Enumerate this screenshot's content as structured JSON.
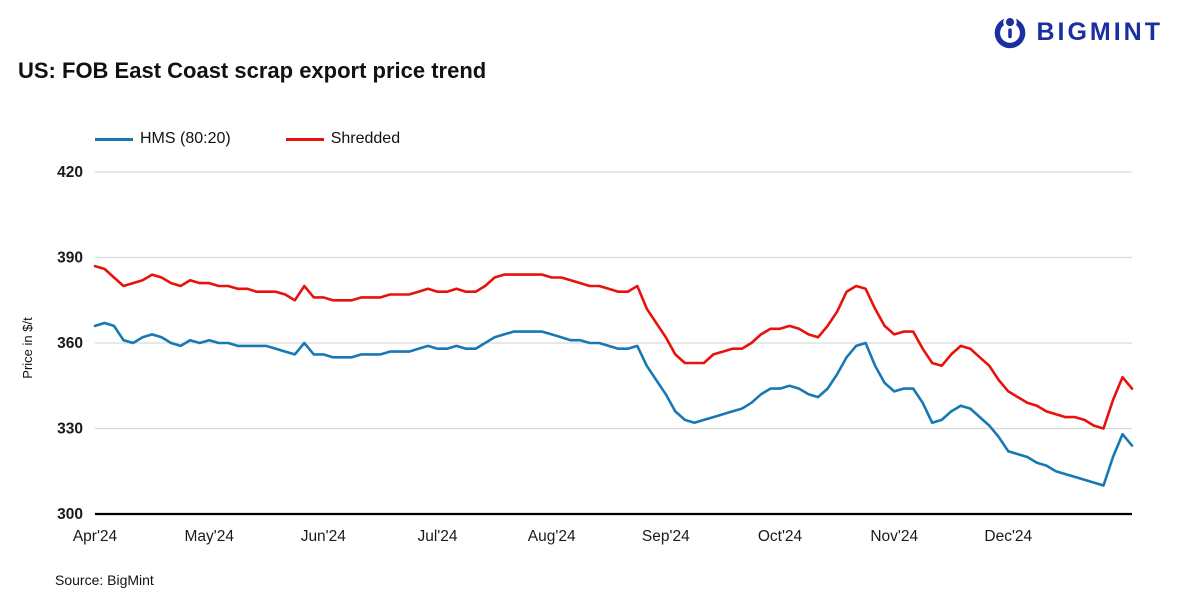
{
  "logo": {
    "text": "BIGMINT",
    "color": "#1b2fa0"
  },
  "title": "US: FOB East Coast scrap export price trend",
  "ylabel": "Price in $/t",
  "source": "Source: BigMint",
  "legend": [
    {
      "label": "HMS (80:20)"
    },
    {
      "label": "Shredded"
    }
  ],
  "chart_data": {
    "type": "line",
    "title": "US: FOB East Coast scrap export price trend",
    "xlabel": "",
    "ylabel": "Price in $/t",
    "ylim": [
      300,
      420
    ],
    "yticks": [
      300,
      330,
      360,
      390,
      420
    ],
    "grid": "horizontal",
    "legend_position": "top-left",
    "x_tick_labels": [
      "Apr'24",
      "May'24",
      "Jun'24",
      "Jul'24",
      "Aug'24",
      "Sep'24",
      "Oct'24",
      "Nov'24",
      "Dec'24"
    ],
    "x_tick_indices": [
      0,
      12,
      24,
      36,
      48,
      60,
      72,
      84,
      96
    ],
    "series": [
      {
        "name": "HMS (80:20)",
        "color": "#1878b4",
        "values": [
          366,
          367,
          366,
          361,
          360,
          362,
          363,
          362,
          360,
          359,
          361,
          360,
          361,
          360,
          360,
          359,
          359,
          359,
          359,
          358,
          357,
          356,
          360,
          356,
          356,
          355,
          355,
          355,
          356,
          356,
          356,
          357,
          357,
          357,
          358,
          359,
          358,
          358,
          359,
          358,
          358,
          360,
          362,
          363,
          364,
          364,
          364,
          364,
          363,
          362,
          361,
          361,
          360,
          360,
          359,
          358,
          358,
          359,
          352,
          347,
          342,
          336,
          333,
          332,
          333,
          334,
          335,
          336,
          337,
          339,
          342,
          344,
          344,
          345,
          344,
          342,
          341,
          344,
          349,
          355,
          359,
          360,
          352,
          346,
          343,
          344,
          344,
          339,
          332,
          333,
          336,
          338,
          337,
          334,
          331,
          327,
          322,
          321,
          320,
          318,
          317,
          315,
          314,
          313,
          312,
          311,
          310,
          320,
          328,
          324
        ]
      },
      {
        "name": "Shredded",
        "color": "#e8120c",
        "values": [
          387,
          386,
          383,
          380,
          381,
          382,
          384,
          383,
          381,
          380,
          382,
          381,
          381,
          380,
          380,
          379,
          379,
          378,
          378,
          378,
          377,
          375,
          380,
          376,
          376,
          375,
          375,
          375,
          376,
          376,
          376,
          377,
          377,
          377,
          378,
          379,
          378,
          378,
          379,
          378,
          378,
          380,
          383,
          384,
          384,
          384,
          384,
          384,
          383,
          383,
          382,
          381,
          380,
          380,
          379,
          378,
          378,
          380,
          372,
          367,
          362,
          356,
          353,
          353,
          353,
          356,
          357,
          358,
          358,
          360,
          363,
          365,
          365,
          366,
          365,
          363,
          362,
          366,
          371,
          378,
          380,
          379,
          372,
          366,
          363,
          364,
          364,
          358,
          353,
          352,
          356,
          359,
          358,
          355,
          352,
          347,
          343,
          341,
          339,
          338,
          336,
          335,
          334,
          334,
          333,
          331,
          330,
          340,
          348,
          344
        ]
      }
    ]
  }
}
